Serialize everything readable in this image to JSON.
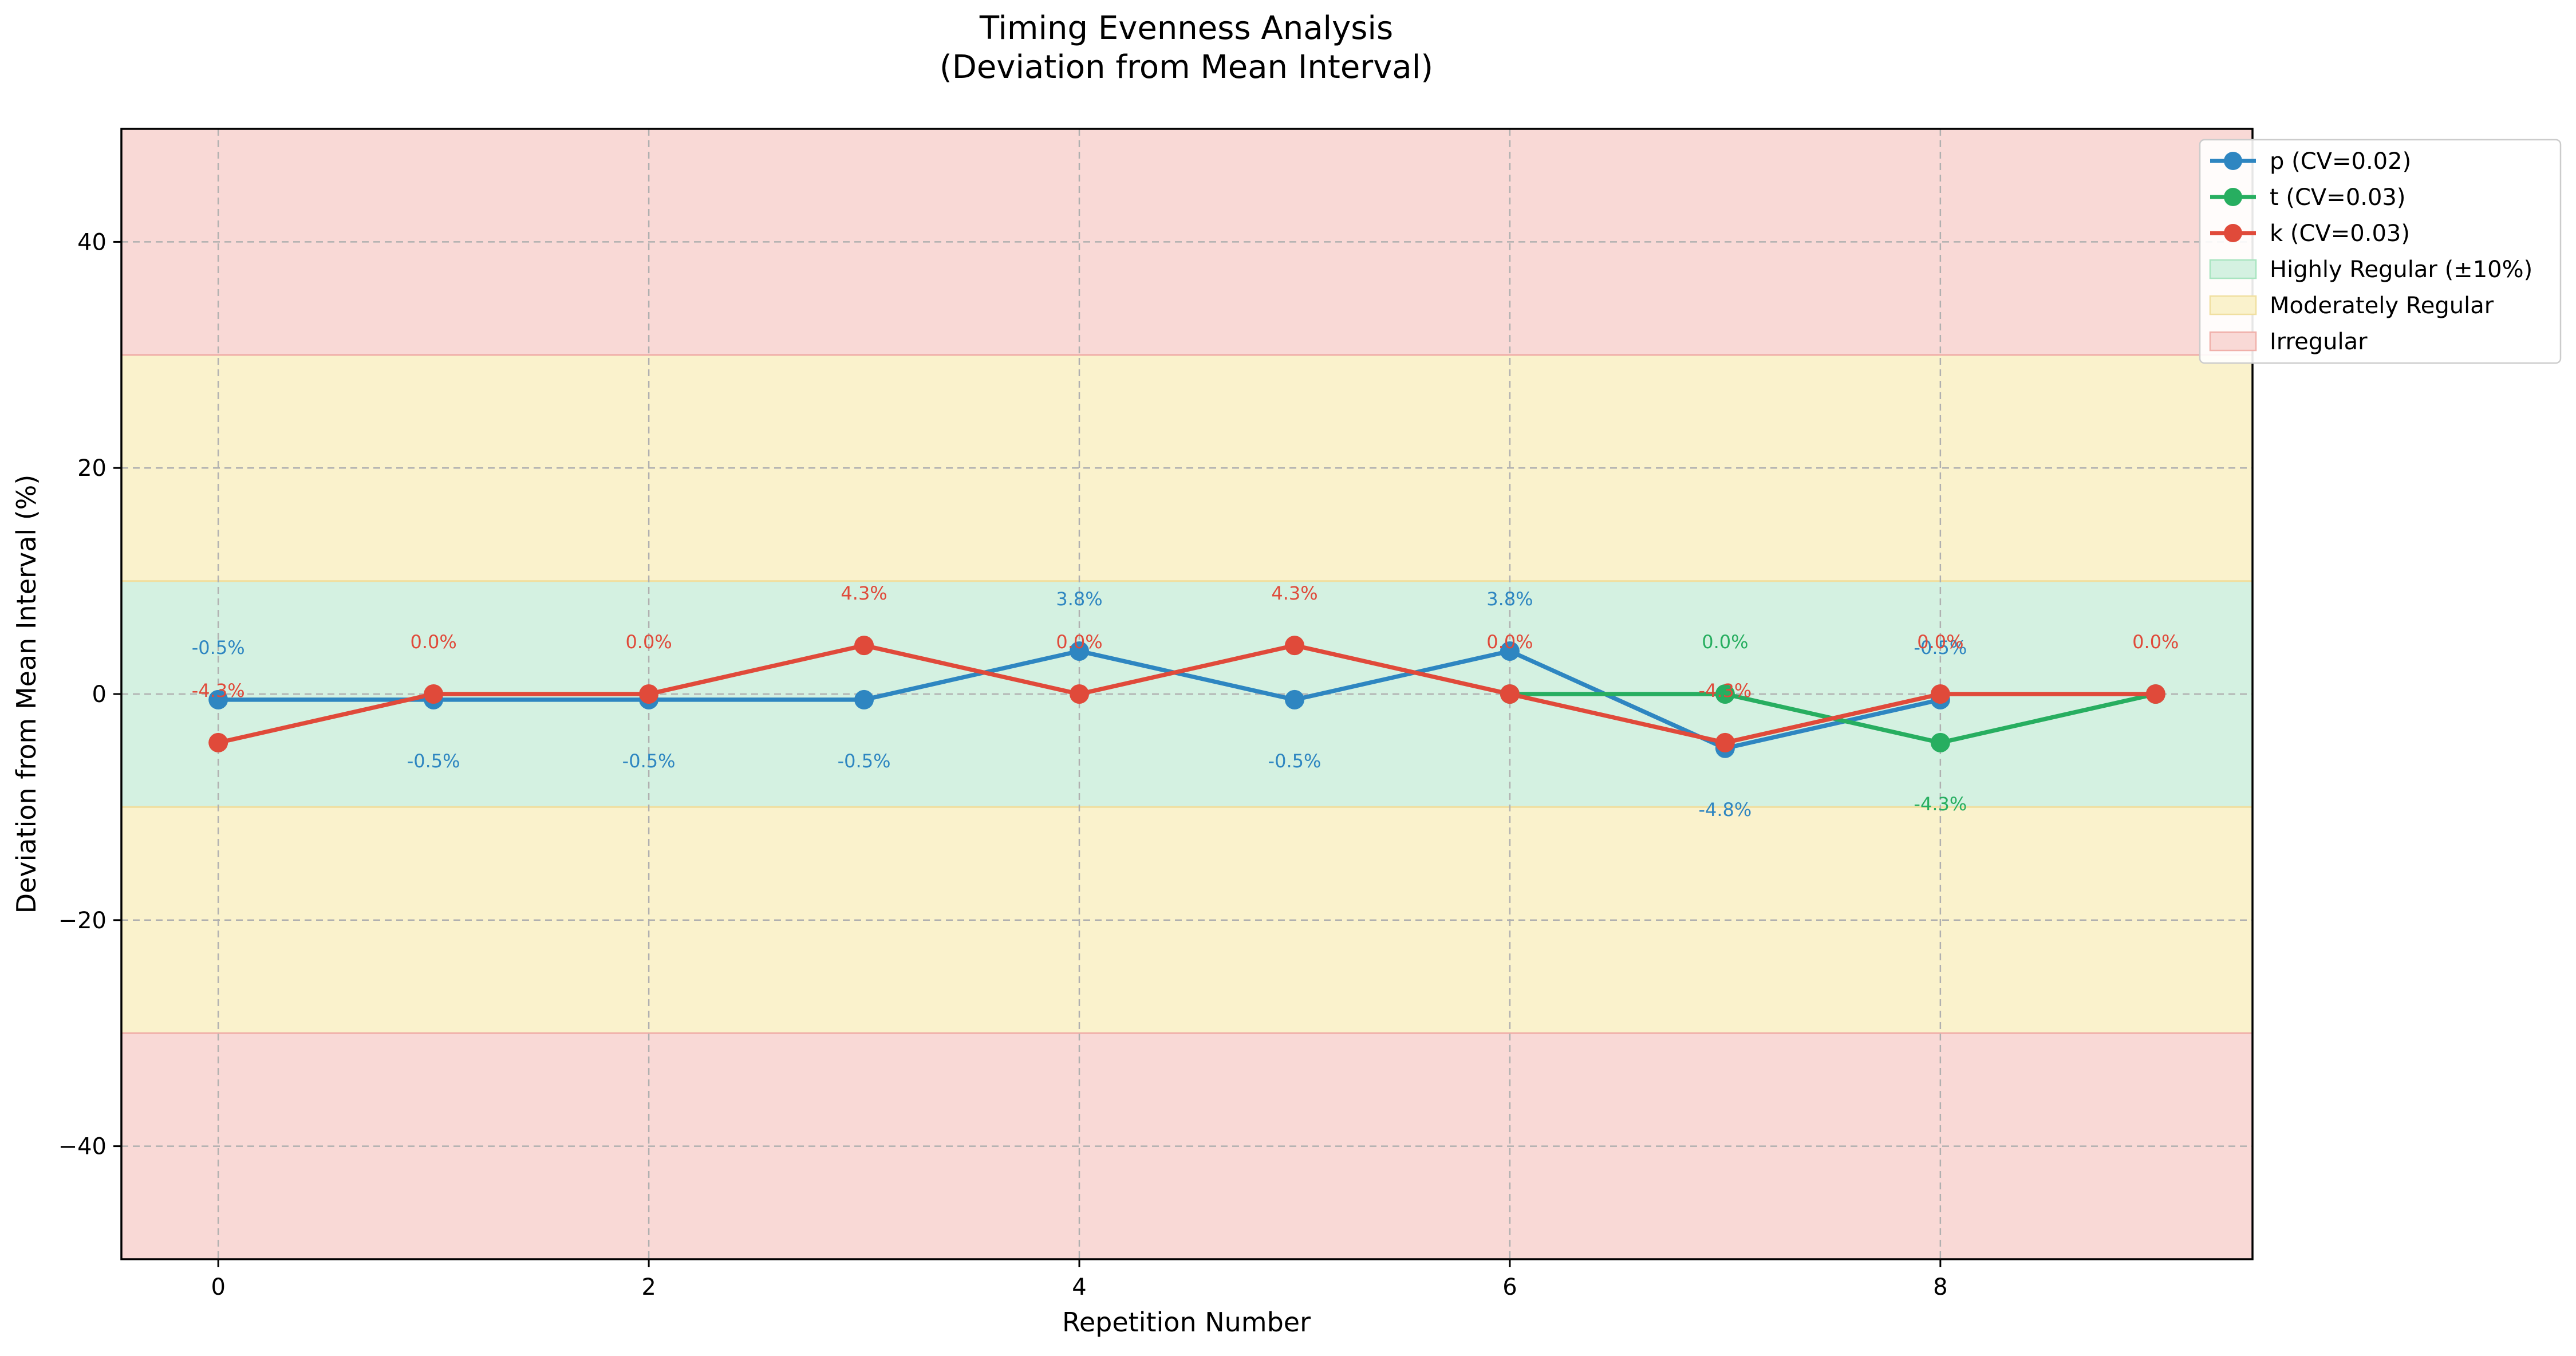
{
  "chart_data": {
    "type": "line",
    "title": "Timing Evenness Analysis",
    "subtitle": "(Deviation from Mean Interval)",
    "xlabel": "Repetition Number",
    "ylabel": "Deviation from Mean Interval (%)",
    "xlim": [
      -0.45,
      9.45
    ],
    "ylim": [
      -50,
      50
    ],
    "x_ticks": [
      0,
      2,
      4,
      6,
      8
    ],
    "y_ticks": [
      -40,
      -20,
      0,
      20,
      40
    ],
    "x_tick_labels": [
      "0",
      "2",
      "4",
      "6",
      "8"
    ],
    "y_tick_labels": [
      "−40",
      "−20",
      "0",
      "20",
      "40"
    ],
    "grid": true,
    "bands": [
      {
        "from": -10,
        "to": 10,
        "color": "#d4f1e1",
        "edge": "#a8e4c0",
        "label": "Highly Regular (±10%)"
      },
      {
        "from": 10,
        "to": 30,
        "color": "#faf2cc",
        "edge": "#f0dfa0",
        "label": "Moderately Regular"
      },
      {
        "from": -30,
        "to": -10,
        "color": "#faf2cc",
        "edge": "#f0dfa0",
        "label": ""
      },
      {
        "from": 30,
        "to": 50,
        "color": "#f9d9d6",
        "edge": "#f0b0aa",
        "label": "Irregular"
      },
      {
        "from": -50,
        "to": -30,
        "color": "#f9d9d6",
        "edge": "#f0b0aa",
        "label": ""
      }
    ],
    "series": [
      {
        "name": "p (CV=0.02)",
        "color": "#2e86c1",
        "x": [
          0,
          1,
          2,
          3,
          4,
          5,
          6,
          7,
          8
        ],
        "values": [
          -0.5,
          -0.5,
          -0.5,
          -0.5,
          3.8,
          -0.5,
          3.8,
          -4.8,
          -0.5
        ],
        "labels": [
          "-0.5%",
          "-0.5%",
          "-0.5%",
          "-0.5%",
          "3.8%",
          "-0.5%",
          "3.8%",
          "-4.8%",
          "-0.5%"
        ],
        "label_pos": [
          "above",
          "below",
          "below",
          "below",
          "above",
          "below",
          "above",
          "below",
          "above"
        ]
      },
      {
        "name": "t (CV=0.03)",
        "color": "#27ae60",
        "x": [
          6,
          7,
          8,
          9
        ],
        "values": [
          0.0,
          0.0,
          -4.3,
          0.0
        ],
        "labels": [
          "",
          "0.0%",
          "-4.3%",
          ""
        ],
        "label_pos": [
          "above",
          "above",
          "below",
          "above"
        ]
      },
      {
        "name": "k (CV=0.03)",
        "color": "#e04a3a",
        "x": [
          0,
          1,
          2,
          3,
          4,
          5,
          6,
          7,
          8,
          9
        ],
        "values": [
          -4.3,
          0.0,
          0.0,
          4.3,
          0.0,
          4.3,
          0.0,
          -4.3,
          0.0,
          0.0
        ],
        "labels": [
          "-4.3%",
          "0.0%",
          "0.0%",
          "4.3%",
          "0.0%",
          "4.3%",
          "0.0%",
          "-4.3%",
          "0.0%",
          "0.0%"
        ],
        "label_pos": [
          "above",
          "above",
          "above",
          "above",
          "above",
          "above",
          "above",
          "above",
          "above",
          "above"
        ]
      }
    ],
    "legend": {
      "placement": "top-right, outside plot",
      "entries": [
        {
          "label": "p (CV=0.02)",
          "kind": "line",
          "color": "#2e86c1"
        },
        {
          "label": "t (CV=0.03)",
          "kind": "line",
          "color": "#27ae60"
        },
        {
          "label": "k (CV=0.03)",
          "kind": "line",
          "color": "#e04a3a"
        },
        {
          "label": "Highly Regular (±10%)",
          "kind": "patch",
          "color": "#d4f1e1",
          "edge": "#a8e4c0"
        },
        {
          "label": "Moderately Regular",
          "kind": "patch",
          "color": "#faf2cc",
          "edge": "#f0dfa0"
        },
        {
          "label": "Irregular",
          "kind": "patch",
          "color": "#f9d9d6",
          "edge": "#f0b0aa"
        }
      ]
    }
  }
}
